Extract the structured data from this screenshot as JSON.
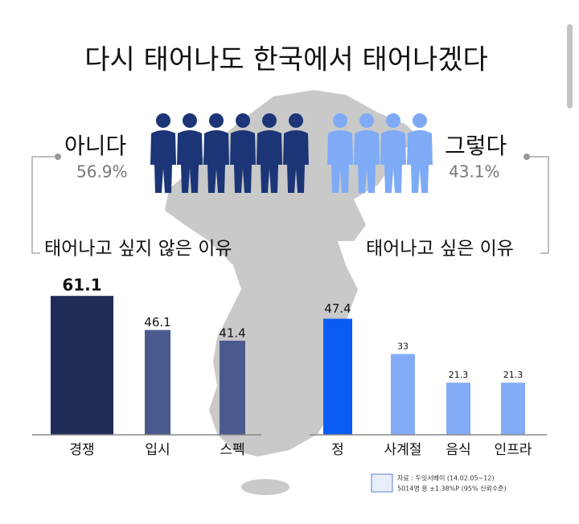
{
  "title": "다시 태어나도 한국에서 태어나겠다",
  "answers": [
    {
      "label": "아니다",
      "value": 56.9,
      "value_label": "56.9%",
      "color": "#1b3576"
    },
    {
      "label": "그렇다",
      "value": 43.1,
      "value_label": "43.1%",
      "color": "#7eaaf6"
    }
  ],
  "chart_data": [
    {
      "type": "bar",
      "title": "태어나고 싶지 않은 이유",
      "categories": [
        "경쟁",
        "입시",
        "스펙"
      ],
      "values": [
        61.1,
        46.1,
        41.4
      ],
      "colors": [
        "#1f2c57",
        "#4a5a8e",
        "#4a5a8e"
      ],
      "ylim": [
        0,
        70
      ]
    },
    {
      "type": "bar",
      "title": "태어나고 싶은 이유",
      "categories": [
        "정",
        "사계절",
        "음식",
        "인프라"
      ],
      "values": [
        47.4,
        33,
        21.3,
        21.3
      ],
      "colors": [
        "#0b5cf4",
        "#84acf6",
        "#84acf6",
        "#84acf6"
      ],
      "ylim": [
        0,
        65
      ]
    }
  ],
  "source": [
    "자료 : 두잇서베이 (14.02.05~12)",
    "5014명 응 ±1.38%P (95% 신뢰수준)"
  ]
}
